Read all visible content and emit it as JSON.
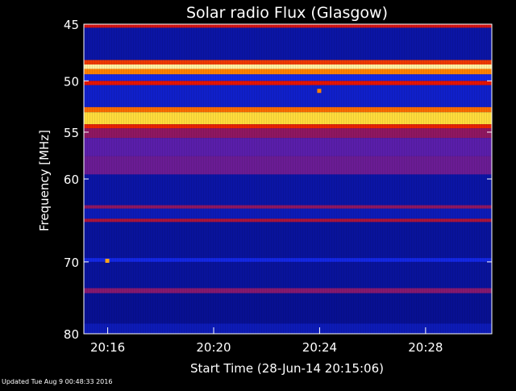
{
  "chart_data": {
    "type": "heatmap",
    "title": "Solar radio Flux (Glasgow)",
    "xlabel": "Start Time (28-Jun-14 20:15:06)",
    "ylabel": "Frequency [MHz]",
    "x_ticks": [
      "20:16",
      "20:20",
      "20:24",
      "20:28"
    ],
    "y_ticks": [
      45,
      50,
      55,
      60,
      70,
      80
    ],
    "y_scale": "log",
    "ylim": [
      45,
      80
    ],
    "xlim": [
      "20:15:06",
      "20:30:30"
    ],
    "colormap": "blue-red-yellow-white",
    "bands": [
      {
        "f_start": 45.0,
        "f_end": 45.3,
        "level": 0.55
      },
      {
        "f_start": 45.3,
        "f_end": 48.1,
        "level": 0.08
      },
      {
        "f_start": 48.1,
        "f_end": 48.5,
        "level": 0.65
      },
      {
        "f_start": 48.5,
        "f_end": 48.9,
        "level": 0.95
      },
      {
        "f_start": 48.9,
        "f_end": 49.4,
        "level": 0.75
      },
      {
        "f_start": 49.4,
        "f_end": 50.0,
        "level": 0.15
      },
      {
        "f_start": 50.0,
        "f_end": 50.4,
        "level": 0.6
      },
      {
        "f_start": 50.4,
        "f_end": 52.5,
        "level": 0.12
      },
      {
        "f_start": 52.5,
        "f_end": 53.0,
        "level": 0.72
      },
      {
        "f_start": 53.0,
        "f_end": 54.2,
        "level": 0.88
      },
      {
        "f_start": 54.2,
        "f_end": 54.6,
        "level": 0.62
      },
      {
        "f_start": 54.6,
        "f_end": 55.6,
        "level": 0.4
      },
      {
        "f_start": 55.6,
        "f_end": 57.5,
        "level": 0.3
      },
      {
        "f_start": 57.5,
        "f_end": 59.5,
        "level": 0.33
      },
      {
        "f_start": 59.5,
        "f_end": 63.0,
        "level": 0.08
      },
      {
        "f_start": 63.0,
        "f_end": 63.4,
        "level": 0.4
      },
      {
        "f_start": 63.4,
        "f_end": 64.6,
        "level": 0.1
      },
      {
        "f_start": 64.6,
        "f_end": 65.0,
        "level": 0.45
      },
      {
        "f_start": 65.0,
        "f_end": 69.5,
        "level": 0.07
      },
      {
        "f_start": 69.5,
        "f_end": 70.0,
        "level": 0.15
      },
      {
        "f_start": 70.0,
        "f_end": 73.5,
        "level": 0.07
      },
      {
        "f_start": 73.5,
        "f_end": 74.2,
        "level": 0.38
      },
      {
        "f_start": 74.2,
        "f_end": 78.5,
        "level": 0.06
      },
      {
        "f_start": 78.5,
        "f_end": 80.0,
        "level": 0.1
      }
    ],
    "bursts": [
      {
        "time": "20:16",
        "freq": 69.8,
        "level": 0.8
      },
      {
        "time": "20:24",
        "freq": 50.9,
        "level": 0.75
      }
    ]
  },
  "footer_text": "Updated Tue Aug  9 00:48:33 2016"
}
